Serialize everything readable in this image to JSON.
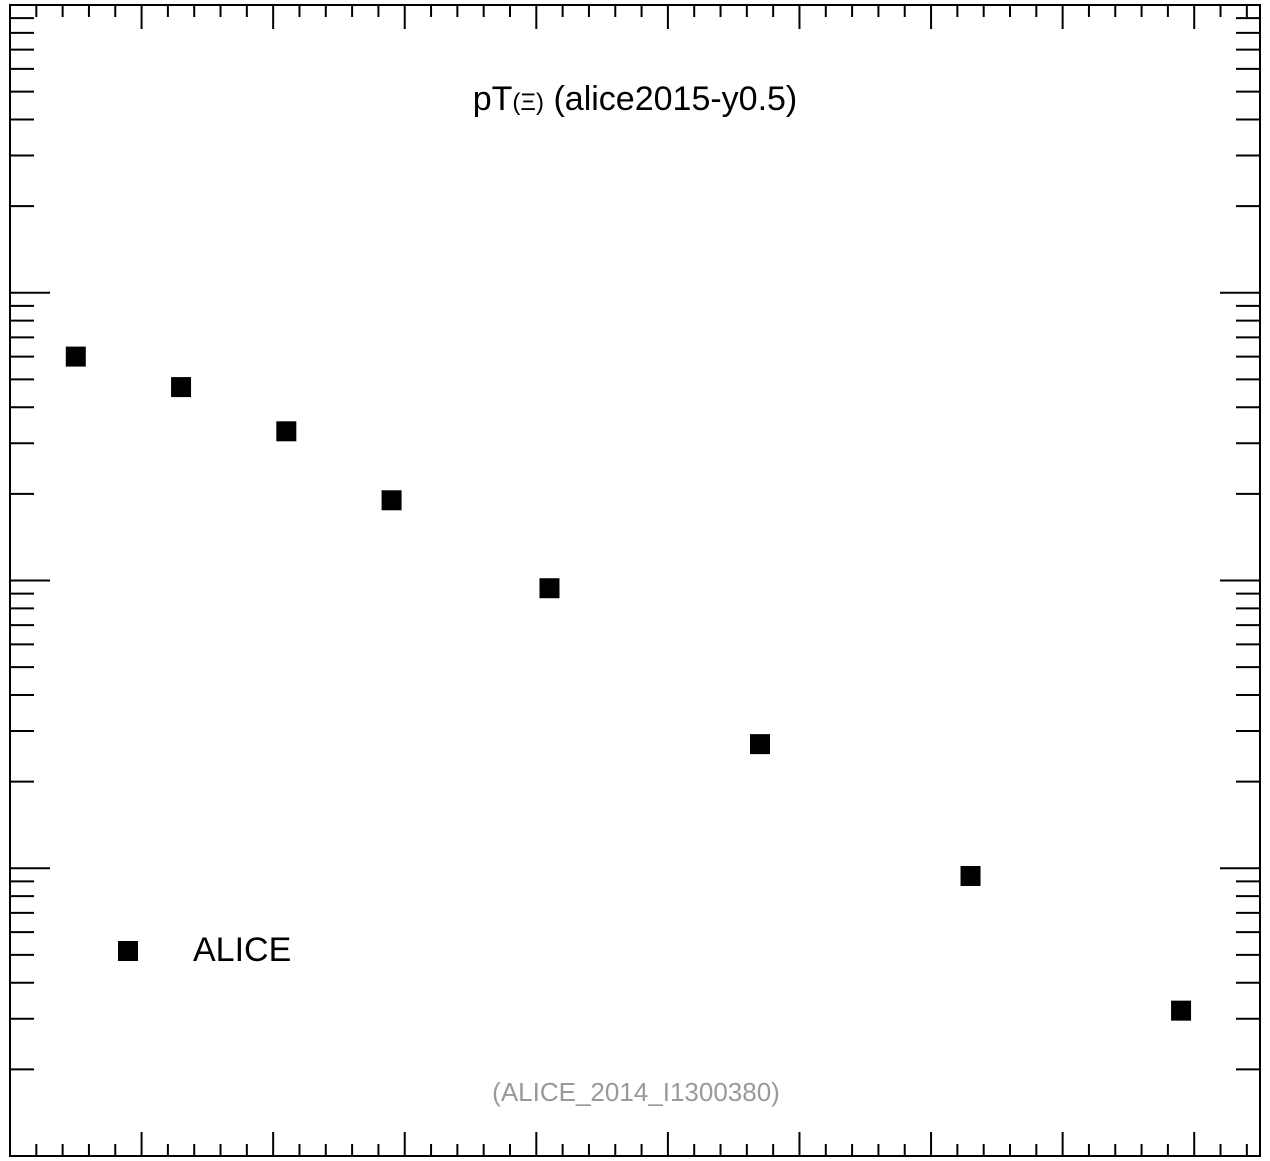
{
  "chart_data": {
    "type": "scatter",
    "title_main": "pT",
    "title_particle": "(Ξ)",
    "title_rest": " (alice2015-y0.5)",
    "watermark": "(ALICE_2014_I1300380)",
    "yscale": "log",
    "xlim": [
      0,
      9.5
    ],
    "ylim": [
      0.0001,
      1
    ],
    "grid": false,
    "legend_position": "bottom-left",
    "series": [
      {
        "name": "ALICE",
        "marker": "square",
        "color": "#000000",
        "x": [
          0.5,
          1.3,
          2.1,
          2.9,
          4.1,
          5.7,
          7.3,
          8.9
        ],
        "y": [
          0.06,
          0.047,
          0.033,
          0.019,
          0.0094,
          0.0027,
          0.00094,
          0.00032
        ]
      }
    ]
  }
}
